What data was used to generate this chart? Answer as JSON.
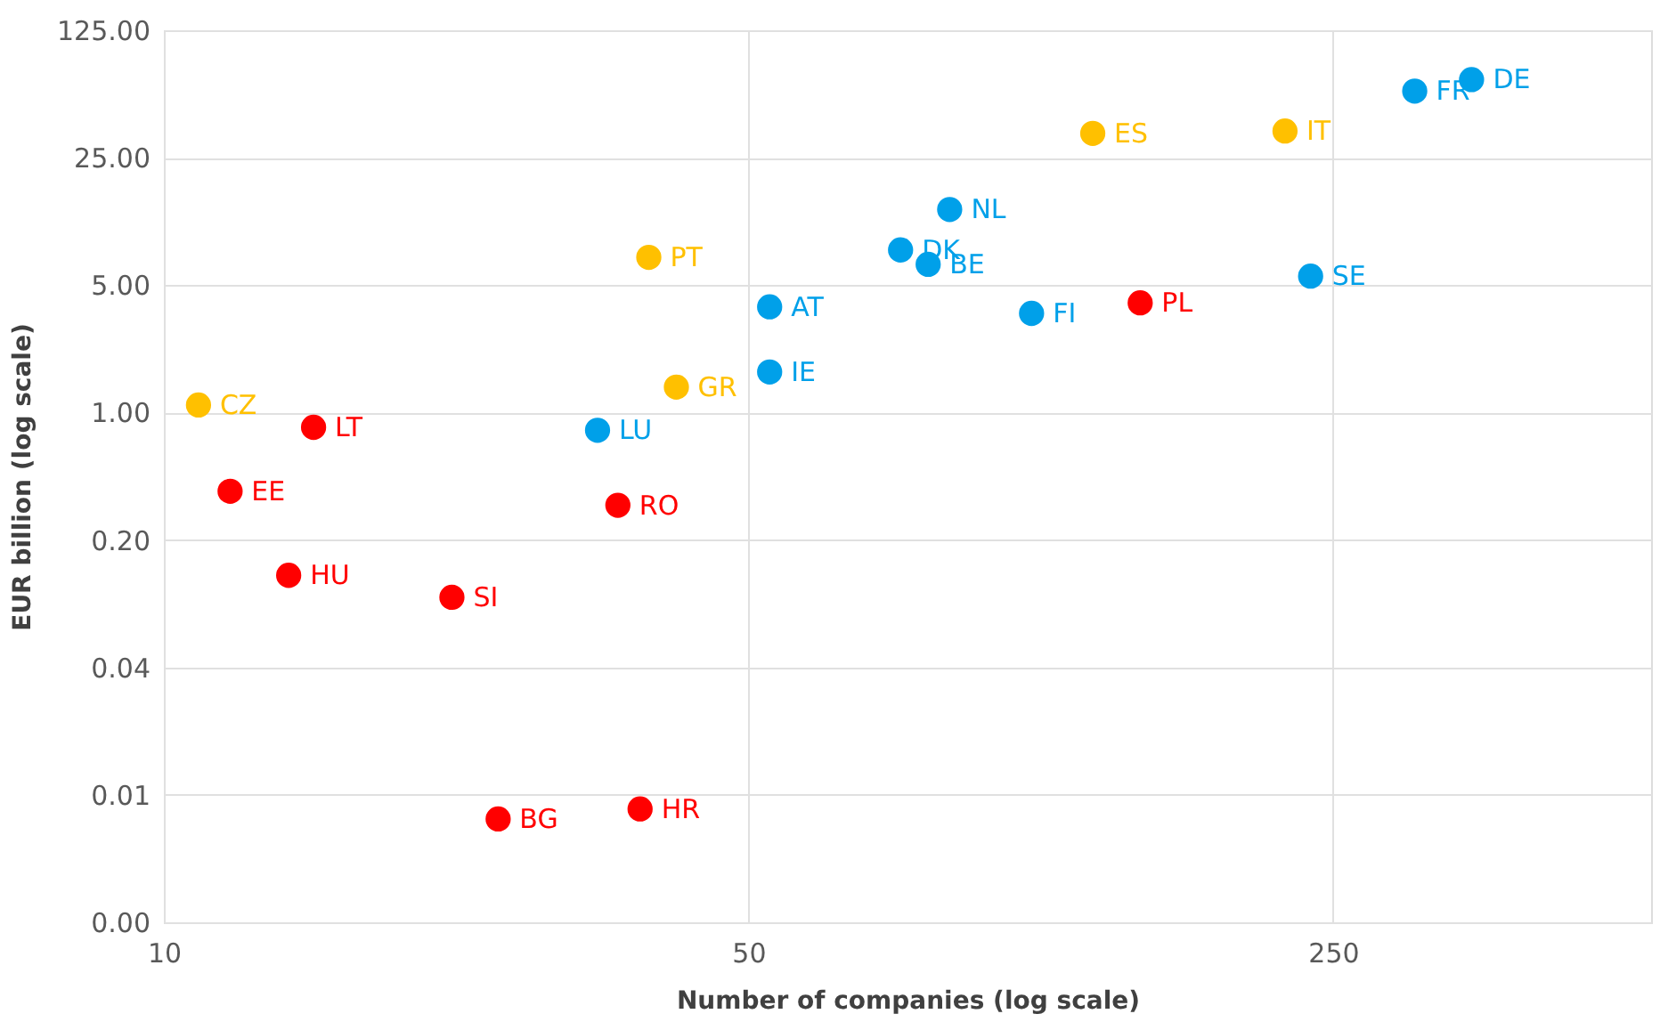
{
  "chart_data": {
    "type": "scatter",
    "xlabel": "Number of companies (log scale)",
    "ylabel": "EUR billion (log scale)",
    "log": "xy",
    "grid": true,
    "marker": "circle",
    "xlim": [
      10,
      600
    ],
    "xticks": [
      10,
      50,
      250
    ],
    "ylim": [
      0.0016,
      125
    ],
    "yticks": [
      {
        "value": 0.0016,
        "label": "0.00"
      },
      {
        "value": 0.008,
        "label": "0.01"
      },
      {
        "value": 0.04,
        "label": "0.04"
      },
      {
        "value": 0.2,
        "label": "0.20"
      },
      {
        "value": 1,
        "label": "1.00"
      },
      {
        "value": 5,
        "label": "5.00"
      },
      {
        "value": 25,
        "label": "25.00"
      },
      {
        "value": 125,
        "label": "125.00"
      }
    ],
    "series": [
      {
        "color": "#00a0e9",
        "x": [
          33,
          53,
          53,
          76,
          82,
          87,
          109,
          235,
          313,
          366
        ],
        "values": [
          0.8,
          3.8,
          1.67,
          7.8,
          6.5,
          13,
          3.5,
          5.6,
          58,
          67
        ]
      },
      {
        "color": "#ffc000",
        "x": [
          11,
          38,
          41,
          129,
          219
        ],
        "values": [
          1.1,
          7.1,
          1.38,
          34,
          35
        ]
      },
      {
        "color": "#ff0000",
        "x": [
          12,
          15.1,
          14.1,
          22.1,
          25.1,
          37.1,
          34.9,
          147
        ],
        "values": [
          0.37,
          0.83,
          0.128,
          0.097,
          0.0059,
          0.0067,
          0.31,
          4.0
        ]
      }
    ],
    "annotations": [
      {
        "text": "LU",
        "x": 33,
        "y": 0.8
      },
      {
        "text": "AT",
        "x": 53,
        "y": 3.8
      },
      {
        "text": "IE",
        "x": 53,
        "y": 1.67
      },
      {
        "text": "DK",
        "x": 76,
        "y": 7.8
      },
      {
        "text": "BE",
        "x": 82,
        "y": 6.5
      },
      {
        "text": "NL",
        "x": 87,
        "y": 13
      },
      {
        "text": "FI",
        "x": 109,
        "y": 3.5
      },
      {
        "text": "SE",
        "x": 235,
        "y": 5.6
      },
      {
        "text": "FR",
        "x": 313,
        "y": 58
      },
      {
        "text": "DE",
        "x": 366,
        "y": 67
      },
      {
        "text": "CZ",
        "x": 11,
        "y": 1.1
      },
      {
        "text": "PT",
        "x": 38,
        "y": 7.1
      },
      {
        "text": "GR",
        "x": 41,
        "y": 1.38
      },
      {
        "text": "ES",
        "x": 129,
        "y": 34
      },
      {
        "text": "IT",
        "x": 219,
        "y": 35
      },
      {
        "text": "EE",
        "x": 12,
        "y": 0.37
      },
      {
        "text": "LT",
        "x": 15.1,
        "y": 0.83
      },
      {
        "text": "HU",
        "x": 14.1,
        "y": 0.128
      },
      {
        "text": "SI",
        "x": 22.1,
        "y": 0.097
      },
      {
        "text": "BG",
        "x": 25.1,
        "y": 0.0059
      },
      {
        "text": "HR",
        "x": 37.1,
        "y": 0.0067
      },
      {
        "text": "RO",
        "x": 34.9,
        "y": 0.31
      },
      {
        "text": "PL",
        "x": 147,
        "y": 4.0
      }
    ]
  }
}
